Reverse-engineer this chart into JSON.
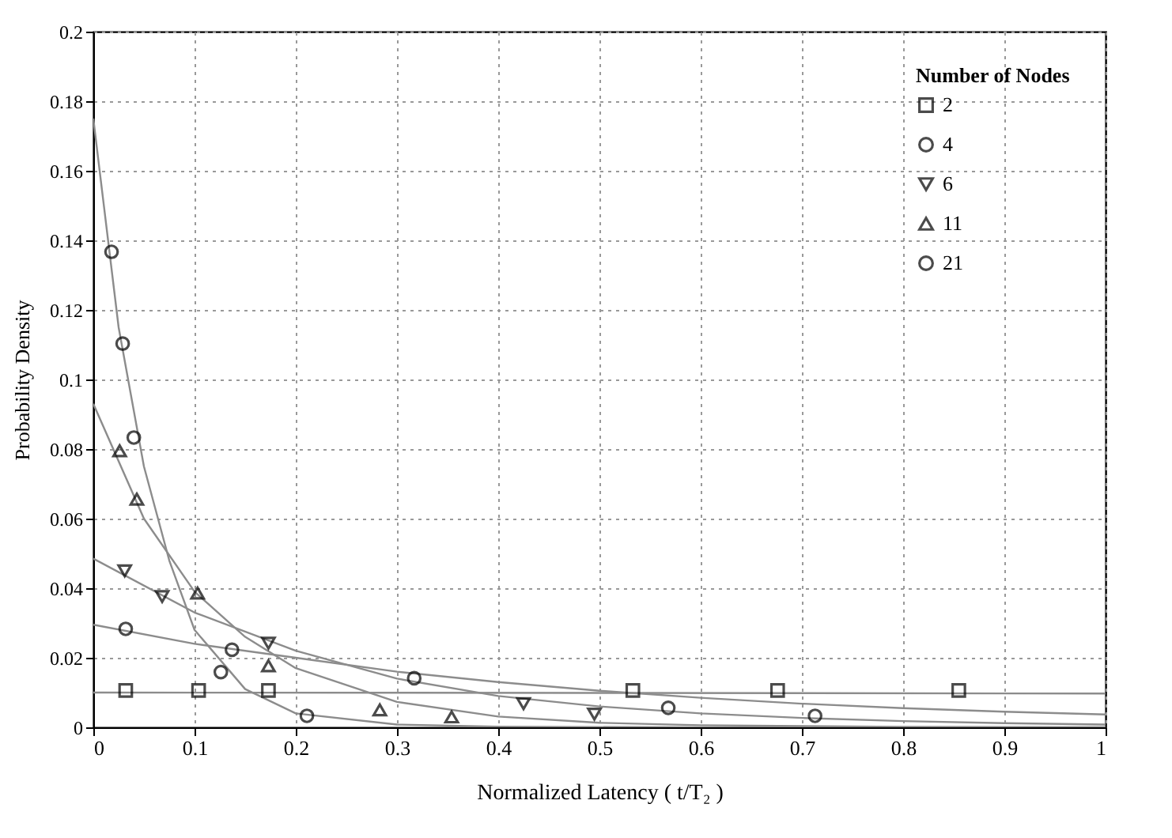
{
  "chart_data": {
    "type": "scatter",
    "xlabel": "Normalized Latency ( t/T₂ )",
    "ylabel": "Probability Density",
    "legend_title": "Number of Nodes",
    "legend": "top right",
    "grid": true,
    "xlim": [
      0,
      1
    ],
    "xticks": [
      0,
      0.1,
      0.2,
      0.3,
      0.4,
      0.5,
      0.6,
      0.7,
      0.8,
      0.9,
      1
    ],
    "ylim": [
      0,
      0.2
    ],
    "yticks": [
      0,
      0.02,
      0.04,
      0.06,
      0.08,
      0.1,
      0.12,
      0.14,
      0.16,
      0.18,
      0.2
    ],
    "series": [
      {
        "name": "2",
        "marker": "square",
        "color": "#000000",
        "x": [
          0.032,
          0.104,
          0.173,
          0.533,
          0.676,
          0.855
        ],
        "values": [
          0.0106,
          0.0106,
          0.0106,
          0.0106,
          0.0106,
          0.0106
        ]
      },
      {
        "name": "4",
        "marker": "circle",
        "color": "#000000",
        "x": [
          0.032,
          0.137,
          0.317,
          0.568,
          0.713
        ],
        "values": [
          0.0283,
          0.0223,
          0.0141,
          0.0056,
          0.0033
        ]
      },
      {
        "name": "6",
        "marker": "triangle-down",
        "color": "#000000",
        "x": [
          0.031,
          0.068,
          0.173,
          0.425,
          0.495
        ],
        "values": [
          0.045,
          0.0376,
          0.0242,
          0.0068,
          0.0038
        ]
      },
      {
        "name": "11",
        "marker": "triangle",
        "color": "#000000",
        "x": [
          0.026,
          0.043,
          0.103,
          0.173,
          0.283,
          0.354
        ],
        "values": [
          0.0795,
          0.0656,
          0.0386,
          0.0177,
          0.005,
          0.003
        ]
      },
      {
        "name": "21",
        "marker": "circle",
        "color": "#000000",
        "x": [
          0.018,
          0.029,
          0.04,
          0.126,
          0.211
        ],
        "values": [
          0.1367,
          0.1103,
          0.0833,
          0.0159,
          0.0033
        ]
      },
      {
        "type": "line",
        "color": "#8c8c8c",
        "x": [
          0,
          0.5,
          1
        ],
        "values": [
          0.01,
          0.0099,
          0.0097
        ]
      },
      {
        "type": "line",
        "color": "#8c8c8c",
        "x": [
          0,
          0.1,
          0.2,
          0.3,
          0.4,
          0.5,
          0.6,
          0.7,
          0.8,
          0.9,
          1
        ],
        "values": [
          0.0295,
          0.024,
          0.02,
          0.016,
          0.013,
          0.0105,
          0.0085,
          0.0068,
          0.0055,
          0.0045,
          0.0037
        ]
      },
      {
        "type": "line",
        "color": "#8c8c8c",
        "x": [
          0,
          0.1,
          0.2,
          0.3,
          0.4,
          0.5,
          0.6,
          0.7,
          0.8,
          0.9,
          1
        ],
        "values": [
          0.0485,
          0.033,
          0.022,
          0.014,
          0.009,
          0.006,
          0.004,
          0.0027,
          0.0018,
          0.0012,
          0.0008
        ]
      },
      {
        "type": "line",
        "color": "#8c8c8c",
        "x": [
          0,
          0.05,
          0.1,
          0.15,
          0.2,
          0.3,
          0.4,
          0.5,
          0.6,
          0.8,
          1
        ],
        "values": [
          0.093,
          0.06,
          0.039,
          0.026,
          0.017,
          0.0073,
          0.0031,
          0.0013,
          0.0006,
          0.0001,
          0
        ]
      },
      {
        "type": "line",
        "color": "#8c8c8c",
        "x": [
          0,
          0.025,
          0.05,
          0.075,
          0.1,
          0.15,
          0.2,
          0.3,
          0.4,
          0.6,
          1
        ],
        "values": [
          0.175,
          0.115,
          0.075,
          0.048,
          0.028,
          0.011,
          0.004,
          0.0008,
          0.0002,
          0,
          0
        ]
      }
    ]
  }
}
